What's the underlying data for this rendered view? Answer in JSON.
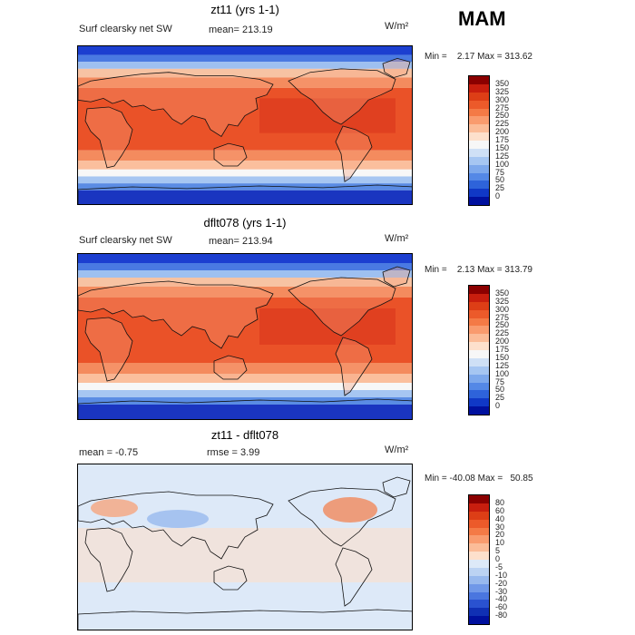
{
  "season": "MAM",
  "panels": [
    {
      "title": "zt11 (yrs 1-1)",
      "left_label": "Surf clearsky net SW",
      "stat_label": "mean= 213.19",
      "units": "W/m²",
      "min_max": "Min =    2.17 Max = 313.62",
      "colorbar": {
        "labels": [
          "350",
          "325",
          "300",
          "275",
          "250",
          "225",
          "200",
          "175",
          "150",
          "125",
          "100",
          "75",
          "50",
          "25",
          "0"
        ],
        "colors": [
          "#8b0000",
          "#c81e0e",
          "#dd3e16",
          "#ec5a2a",
          "#f47a46",
          "#f99b6e",
          "#fbbc98",
          "#fde0cc",
          "#f7f7f7",
          "#cfe0f6",
          "#a6c6f2",
          "#7da8ec",
          "#5488e6",
          "#2e63da",
          "#1038c6",
          "#00109e"
        ]
      },
      "map_style": "sw"
    },
    {
      "title": "dflt078 (yrs 1-1)",
      "left_label": "Surf clearsky net SW",
      "stat_label": "mean= 213.94",
      "units": "W/m²",
      "min_max": "Min =    2.13 Max = 313.79",
      "colorbar": {
        "labels": [
          "350",
          "325",
          "300",
          "275",
          "250",
          "225",
          "200",
          "175",
          "150",
          "125",
          "100",
          "75",
          "50",
          "25",
          "0"
        ],
        "colors": [
          "#8b0000",
          "#c81e0e",
          "#dd3e16",
          "#ec5a2a",
          "#f47a46",
          "#f99b6e",
          "#fbbc98",
          "#fde0cc",
          "#f7f7f7",
          "#cfe0f6",
          "#a6c6f2",
          "#7da8ec",
          "#5488e6",
          "#2e63da",
          "#1038c6",
          "#00109e"
        ]
      },
      "map_style": "sw"
    },
    {
      "title": "zt11 - dflt078",
      "left_label": "mean =   -0.75",
      "stat_label": "rmse =    3.99",
      "units": "W/m²",
      "min_max": "Min = -40.08 Max =   50.85",
      "colorbar": {
        "labels": [
          "80",
          "60",
          "40",
          "30",
          "20",
          "10",
          "5",
          "0",
          "-5",
          "-10",
          "-20",
          "-30",
          "-40",
          "-60",
          "-80"
        ],
        "colors": [
          "#8b0000",
          "#c81e0e",
          "#dd3e16",
          "#ec5a2a",
          "#f47a46",
          "#f99b6e",
          "#fbbc98",
          "#fde0cc",
          "#dde9f8",
          "#bcd3f3",
          "#98b9ee",
          "#7098e8",
          "#4a76df",
          "#2a52d0",
          "#1030b4",
          "#00109e"
        ]
      },
      "map_style": "diff"
    }
  ]
}
